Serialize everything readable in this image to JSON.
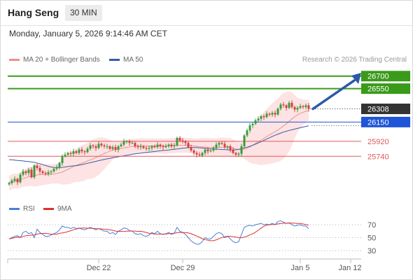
{
  "header": {
    "instrument": "Hang Seng",
    "timeframe": "30 MIN"
  },
  "datetime": "Monday, January 5, 2026 9:14:46 AM CET",
  "legend_main": [
    {
      "label": "MA 20 + Bollinger Bands",
      "color": "#f08c8c"
    },
    {
      "label": "MA 50",
      "color": "#3a5aa8"
    }
  ],
  "credit": "Research © 2026 Trading Central",
  "legend_rsi": [
    {
      "label": "RSI",
      "color": "#4a7fd8"
    },
    {
      "label": "9MA",
      "color": "#e03030"
    }
  ],
  "colors": {
    "target": "#3a9a1a",
    "pivot": "#1f55d6",
    "support": "#e05a5a",
    "price_tag": "#333333",
    "arrow": "#2c5aa8",
    "band_fill": "#fde3e3",
    "up_candle": "#3a9a3a",
    "down_candle": "#d24040"
  },
  "chart_data": [
    {
      "type": "candlestick",
      "x_tick_labels": [
        "Dec 22",
        "Dec 29",
        "Jan 5",
        "Jan 12"
      ],
      "x_tick_index": [
        32,
        62,
        104,
        122
      ],
      "ylim": [
        25290,
        26790
      ],
      "current_price": "26308",
      "levels": [
        {
          "label": "26700",
          "value": 26700,
          "kind": "target"
        },
        {
          "label": "26550",
          "value": 26550,
          "kind": "target"
        },
        {
          "label": "26150",
          "value": 26150,
          "kind": "pivot"
        },
        {
          "label": "25920",
          "value": 25920,
          "kind": "support"
        },
        {
          "label": "25740",
          "value": 25740,
          "kind": "support"
        }
      ],
      "closes": [
        25420,
        25450,
        25470,
        25430,
        25520,
        25560,
        25540,
        25580,
        25490,
        25630,
        25600,
        25560,
        25540,
        25530,
        25550,
        25560,
        25590,
        25610,
        25660,
        25740,
        25760,
        25780,
        25770,
        25800,
        25780,
        25820,
        25800,
        25790,
        25830,
        25870,
        25860,
        25840,
        25890,
        25870,
        25860,
        25860,
        25830,
        25850,
        25820,
        25860,
        25880,
        25920,
        25920,
        25900,
        25900,
        25860,
        25850,
        25860,
        25840,
        25830,
        25840,
        25860,
        25850,
        25880,
        25860,
        25850,
        25860,
        25880,
        25860,
        25870,
        25960,
        25930,
        25920,
        25900,
        25850,
        25810,
        25780,
        25760,
        25750,
        25780,
        25820,
        25800,
        25810,
        25840,
        25880,
        25900,
        25890,
        25850,
        25860,
        25820,
        25780,
        25760,
        25770,
        25860,
        25990,
        26050,
        26110,
        26130,
        26170,
        26190,
        26220,
        26210,
        26250,
        26240,
        26260,
        26240,
        26310,
        26360,
        26350,
        26320,
        26380,
        26330,
        26300,
        26320,
        26340,
        26330,
        26350,
        26308
      ],
      "ma50": [
        25700,
        25698,
        25694,
        25690,
        25688,
        25685,
        25680,
        25678,
        25672,
        25668,
        25660,
        25650,
        25640,
        25630,
        25620,
        25612,
        25608,
        25606,
        25606,
        25608,
        25612,
        25618,
        25622,
        25626,
        25628,
        25634,
        25640,
        25648,
        25656,
        25664,
        25672,
        25680,
        25688,
        25696,
        25702,
        25710,
        25716,
        25722,
        25728,
        25734,
        25740,
        25746,
        25752,
        25758,
        25764,
        25770,
        25774,
        25778,
        25782,
        25786,
        25790,
        25794,
        25798,
        25802,
        25806,
        25810,
        25812,
        25816,
        25820,
        25824,
        25828,
        25832,
        25836,
        25840,
        25844,
        25846,
        25846,
        25844,
        25842,
        25840,
        25836,
        25832,
        25830,
        25828,
        25826,
        25824,
        25822,
        25820,
        25818,
        25816,
        25816,
        25818,
        25824,
        25832,
        25840,
        25850,
        25860,
        25872,
        25886,
        25900,
        25914,
        25930,
        25946,
        25962,
        25978,
        25992,
        26006,
        26018,
        26030,
        26040,
        26050,
        26058,
        26066,
        26074,
        26082,
        26090,
        26098,
        26106
      ],
      "rsi": [
        48,
        50,
        52,
        53,
        50,
        58,
        60,
        56,
        58,
        50,
        63,
        58,
        55,
        52,
        52,
        54,
        56,
        58,
        62,
        68,
        66,
        66,
        64,
        66,
        64,
        65,
        63,
        62,
        64,
        66,
        64,
        62,
        64,
        62,
        60,
        60,
        56,
        58,
        55,
        60,
        62,
        65,
        64,
        61,
        60,
        56,
        55,
        56,
        53,
        52,
        54,
        58,
        56,
        60,
        56,
        55,
        56,
        58,
        55,
        57,
        66,
        60,
        58,
        55,
        50,
        45,
        42,
        40,
        40,
        44,
        50,
        48,
        48,
        52,
        56,
        58,
        56,
        50,
        52,
        48,
        44,
        42,
        44,
        55,
        66,
        68,
        69,
        68,
        70,
        71,
        72,
        70,
        71,
        70,
        72,
        70,
        75,
        76,
        74,
        72,
        73,
        70,
        68,
        69,
        70,
        68,
        68,
        64
      ]
    }
  ]
}
